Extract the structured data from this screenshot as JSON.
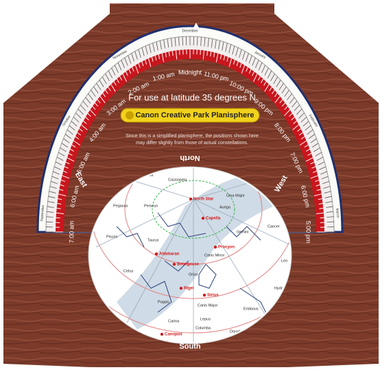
{
  "header": {
    "latitude": "For use at latitude 35 degrees N",
    "title": "Canon Creative Park Planisphere",
    "note": [
      "Since this is a simplified planisphere, the positions shown here",
      "may differ slightly from those of actual constellations."
    ]
  },
  "dial": {
    "times": [
      "7:00 am",
      "6:00 am",
      "5:00 am",
      "4:00 am",
      "3:00 am",
      "2:00 am",
      "1:00 am",
      "Midnight",
      "11:00 pm",
      "10:00 pm",
      "9:00 pm",
      "8:00 pm",
      "7:00 pm",
      "6:00 pm",
      "5:00 pm"
    ],
    "months": [
      "September",
      "October",
      "November",
      "December",
      "January",
      "February",
      "March"
    ]
  },
  "directions": {
    "north": "North",
    "south": "South",
    "east": "East",
    "west": "West"
  },
  "map": {
    "labels": [
      "North Star",
      "Cassiopeia",
      "Ursa Major",
      "Perseus",
      "Capella",
      "Auriga",
      "Aldebaran",
      "Taurus",
      "Betelgeuse",
      "Orion",
      "Rigel",
      "Gemini",
      "Procyon",
      "Canis Minor",
      "Sirius",
      "Canis Major",
      "Lepus",
      "Columba",
      "Eridanus",
      "Cancer",
      "Leo",
      "Hydra",
      "Puppis",
      "Carina",
      "Canopus",
      "Dorado",
      "Andromeda",
      "Pegasus",
      "Pisces",
      "Cetus"
    ]
  }
}
